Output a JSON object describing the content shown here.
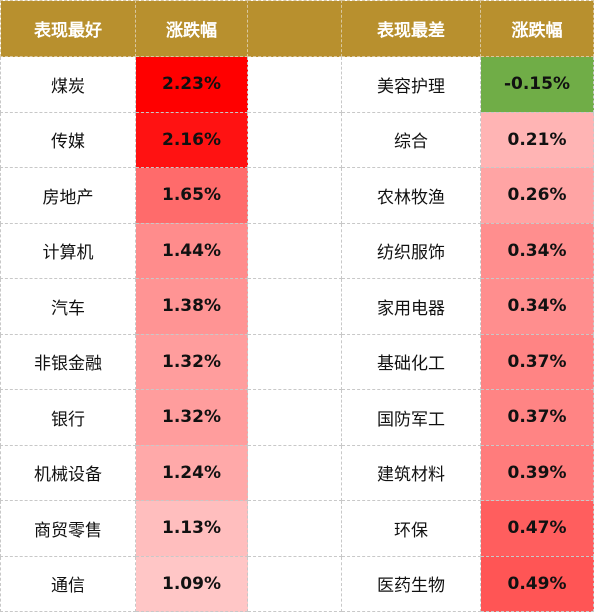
{
  "colors": {
    "header_bg": "#B8902E",
    "header_text": "#FFFFFF",
    "gridline": "#C8C8C8",
    "positive_scale": [
      "#FFCCCC",
      "#FFC2C2",
      "#FFB8B8",
      "#FFA8A8",
      "#FF9898",
      "#FF8888",
      "#FF6E6E",
      "#FF5252",
      "#FF3030",
      "#FF1010",
      "#FF0000"
    ],
    "negative": "#70AD47"
  },
  "headers": {
    "best": "表现最好",
    "best_change": "涨跌幅",
    "worst": "表现最差",
    "worst_change": "涨跌幅"
  },
  "rows": [
    {
      "best_name": "煤炭",
      "best_value": "2.23%",
      "best_color": "#FF0000",
      "worst_name": "美容护理",
      "worst_value": "-0.15%",
      "worst_color": "#70AD47"
    },
    {
      "best_name": "传媒",
      "best_value": "2.16%",
      "best_color": "#FF1212",
      "worst_name": "综合",
      "worst_value": "0.21%",
      "worst_color": "#FFB4B4"
    },
    {
      "best_name": "房地产",
      "best_value": "1.65%",
      "best_color": "#FF6B6B",
      "worst_name": "农林牧渔",
      "worst_value": "0.26%",
      "worst_color": "#FFA4A4"
    },
    {
      "best_name": "计算机",
      "best_value": "1.44%",
      "best_color": "#FF8C8C",
      "worst_name": "纺织服饰",
      "worst_value": "0.34%",
      "worst_color": "#FF8E8E"
    },
    {
      "best_name": "汽车",
      "best_value": "1.38%",
      "best_color": "#FF9494",
      "worst_name": "家用电器",
      "worst_value": "0.34%",
      "worst_color": "#FF8E8E"
    },
    {
      "best_name": "非银金融",
      "best_value": "1.32%",
      "best_color": "#FF9D9D",
      "worst_name": "基础化工",
      "worst_value": "0.37%",
      "worst_color": "#FF8484"
    },
    {
      "best_name": "银行",
      "best_value": "1.32%",
      "best_color": "#FF9D9D",
      "worst_name": "国防军工",
      "worst_value": "0.37%",
      "worst_color": "#FF8484"
    },
    {
      "best_name": "机械设备",
      "best_value": "1.24%",
      "best_color": "#FFA9A9",
      "worst_name": "建筑材料",
      "worst_value": "0.39%",
      "worst_color": "#FF7C7C"
    },
    {
      "best_name": "商贸零售",
      "best_value": "1.13%",
      "best_color": "#FFBEBE",
      "worst_name": "环保",
      "worst_value": "0.47%",
      "worst_color": "#FF5E5E"
    },
    {
      "best_name": "通信",
      "best_value": "1.09%",
      "best_color": "#FFC6C6",
      "worst_name": "医药生物",
      "worst_value": "0.49%",
      "worst_color": "#FF5555"
    }
  ]
}
